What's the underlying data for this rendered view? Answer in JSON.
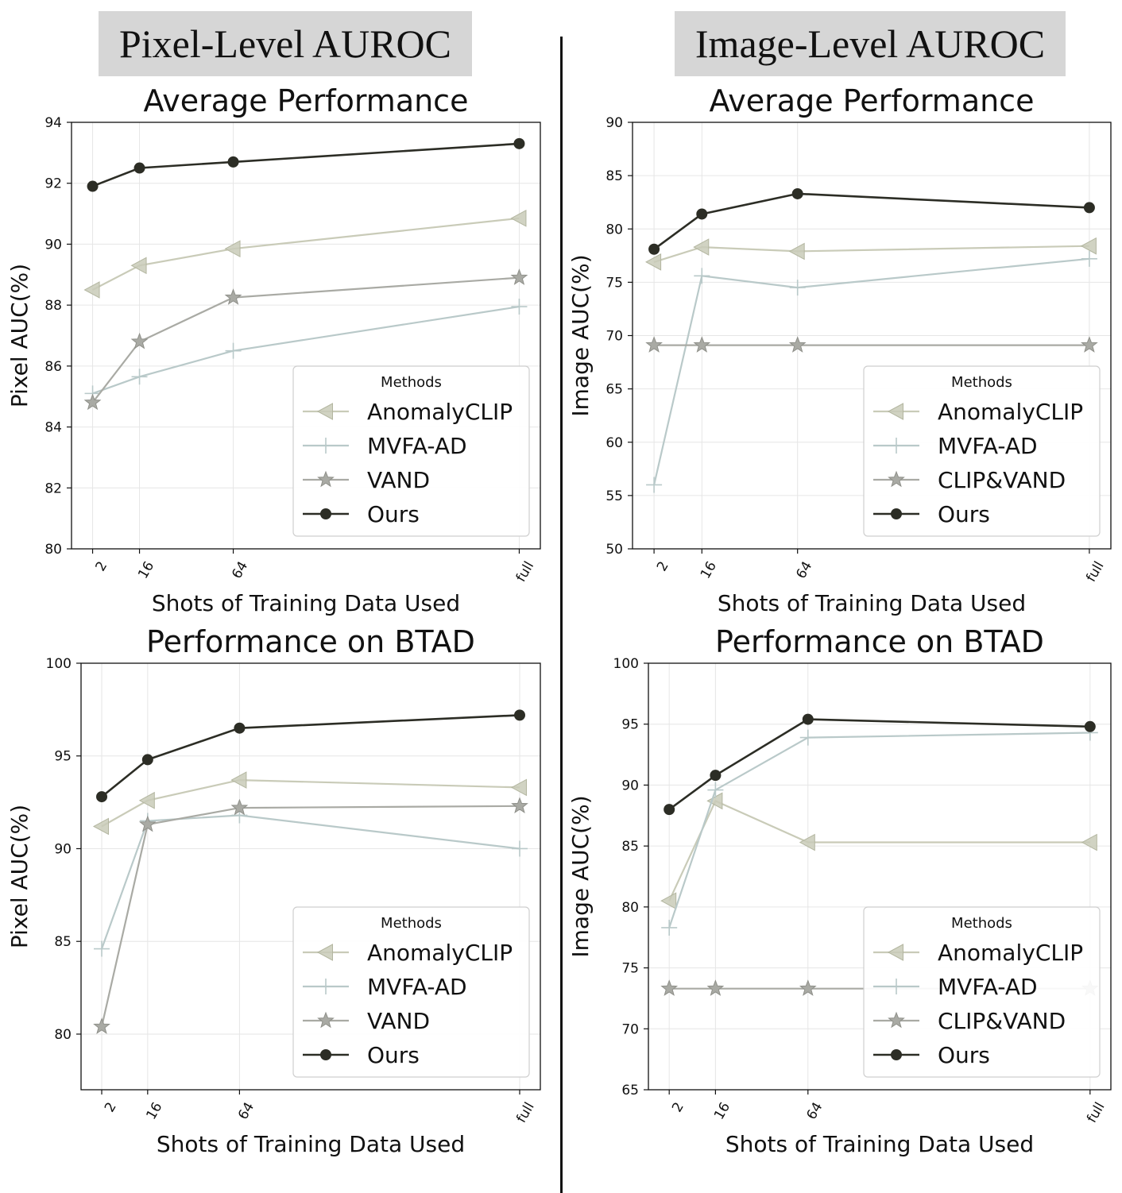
{
  "headers": {
    "left": "Pixel-Level AUROC",
    "right": "Image-Level AUROC"
  },
  "chart_data": [
    {
      "type": "line",
      "title": "Average Performance",
      "xlabel": "Shots of Training Data Used",
      "ylabel": "Pixel AUC(%)",
      "x": [
        "2",
        "16",
        "64",
        "full"
      ],
      "ylim": [
        80,
        94
      ],
      "yticks": [
        80,
        82,
        84,
        86,
        88,
        90,
        92,
        94
      ],
      "grid": true,
      "legend_title": "Methods",
      "legend_position": "lower-right",
      "series": [
        {
          "name": "AnomalyCLIP",
          "marker": "triangle-left",
          "color": "#c9cbb8",
          "values": [
            88.5,
            89.3,
            89.85,
            90.85
          ]
        },
        {
          "name": "MVFA-AD",
          "marker": "plus",
          "color": "#b9c9c9",
          "values": [
            85.1,
            85.65,
            86.5,
            87.95
          ]
        },
        {
          "name": "VAND",
          "marker": "star",
          "color": "#a9aaa4",
          "values": [
            84.8,
            86.8,
            88.25,
            88.9
          ]
        },
        {
          "name": "Ours",
          "marker": "circle",
          "color": "#2c2d25",
          "values": [
            91.9,
            92.5,
            92.7,
            93.3
          ]
        }
      ]
    },
    {
      "type": "line",
      "title": "Average Performance",
      "xlabel": "Shots of Training Data Used",
      "ylabel": "Image AUC(%)",
      "x": [
        "2",
        "16",
        "64",
        "full"
      ],
      "ylim": [
        50,
        90
      ],
      "yticks": [
        50,
        55,
        60,
        65,
        70,
        75,
        80,
        85,
        90
      ],
      "grid": true,
      "legend_title": "Methods",
      "legend_position": "lower-right",
      "series": [
        {
          "name": "AnomalyCLIP",
          "marker": "triangle-left",
          "color": "#c9cbb8",
          "values": [
            76.9,
            78.3,
            77.9,
            78.4
          ]
        },
        {
          "name": "MVFA-AD",
          "marker": "plus",
          "color": "#b9c9c9",
          "values": [
            56.0,
            75.6,
            74.5,
            77.2
          ]
        },
        {
          "name": "CLIP&VAND",
          "marker": "star",
          "color": "#a9aaa4",
          "values": [
            69.1,
            69.1,
            69.1,
            69.1
          ]
        },
        {
          "name": "Ours",
          "marker": "circle",
          "color": "#2c2d25",
          "values": [
            78.1,
            81.4,
            83.3,
            82.0
          ]
        }
      ]
    },
    {
      "type": "line",
      "title": "Performance on BTAD",
      "xlabel": "Shots of Training Data Used",
      "ylabel": "Pixel AUC(%)",
      "x": [
        "2",
        "16",
        "64",
        "full"
      ],
      "ylim": [
        77,
        100
      ],
      "yticks": [
        80,
        85,
        90,
        95,
        100
      ],
      "grid": true,
      "legend_title": "Methods",
      "legend_position": "lower-right",
      "series": [
        {
          "name": "AnomalyCLIP",
          "marker": "triangle-left",
          "color": "#c9cbb8",
          "values": [
            91.2,
            92.6,
            93.7,
            93.3
          ]
        },
        {
          "name": "MVFA-AD",
          "marker": "plus",
          "color": "#b9c9c9",
          "values": [
            84.6,
            91.5,
            91.8,
            90.0
          ]
        },
        {
          "name": "VAND",
          "marker": "star",
          "color": "#a9aaa4",
          "values": [
            80.4,
            91.3,
            92.2,
            92.3
          ]
        },
        {
          "name": "Ours",
          "marker": "circle",
          "color": "#2c2d25",
          "values": [
            92.8,
            94.8,
            96.5,
            97.2
          ]
        }
      ]
    },
    {
      "type": "line",
      "title": "Performance on BTAD",
      "xlabel": "Shots of Training Data Used",
      "ylabel": "Image AUC(%)",
      "x": [
        "2",
        "16",
        "64",
        "full"
      ],
      "ylim": [
        65,
        100
      ],
      "yticks": [
        65,
        70,
        75,
        80,
        85,
        90,
        95,
        100
      ],
      "grid": true,
      "legend_title": "Methods",
      "legend_position": "lower-right",
      "series": [
        {
          "name": "AnomalyCLIP",
          "marker": "triangle-left",
          "color": "#c9cbb8",
          "values": [
            80.5,
            88.7,
            85.3,
            85.3
          ]
        },
        {
          "name": "MVFA-AD",
          "marker": "plus",
          "color": "#b9c9c9",
          "values": [
            78.3,
            89.6,
            93.9,
            94.3
          ]
        },
        {
          "name": "CLIP&VAND",
          "marker": "star",
          "color": "#a9aaa4",
          "values": [
            73.3,
            73.3,
            73.3,
            73.3
          ]
        },
        {
          "name": "Ours",
          "marker": "circle",
          "color": "#2c2d25",
          "values": [
            88.0,
            90.8,
            95.4,
            94.8
          ]
        }
      ]
    }
  ]
}
